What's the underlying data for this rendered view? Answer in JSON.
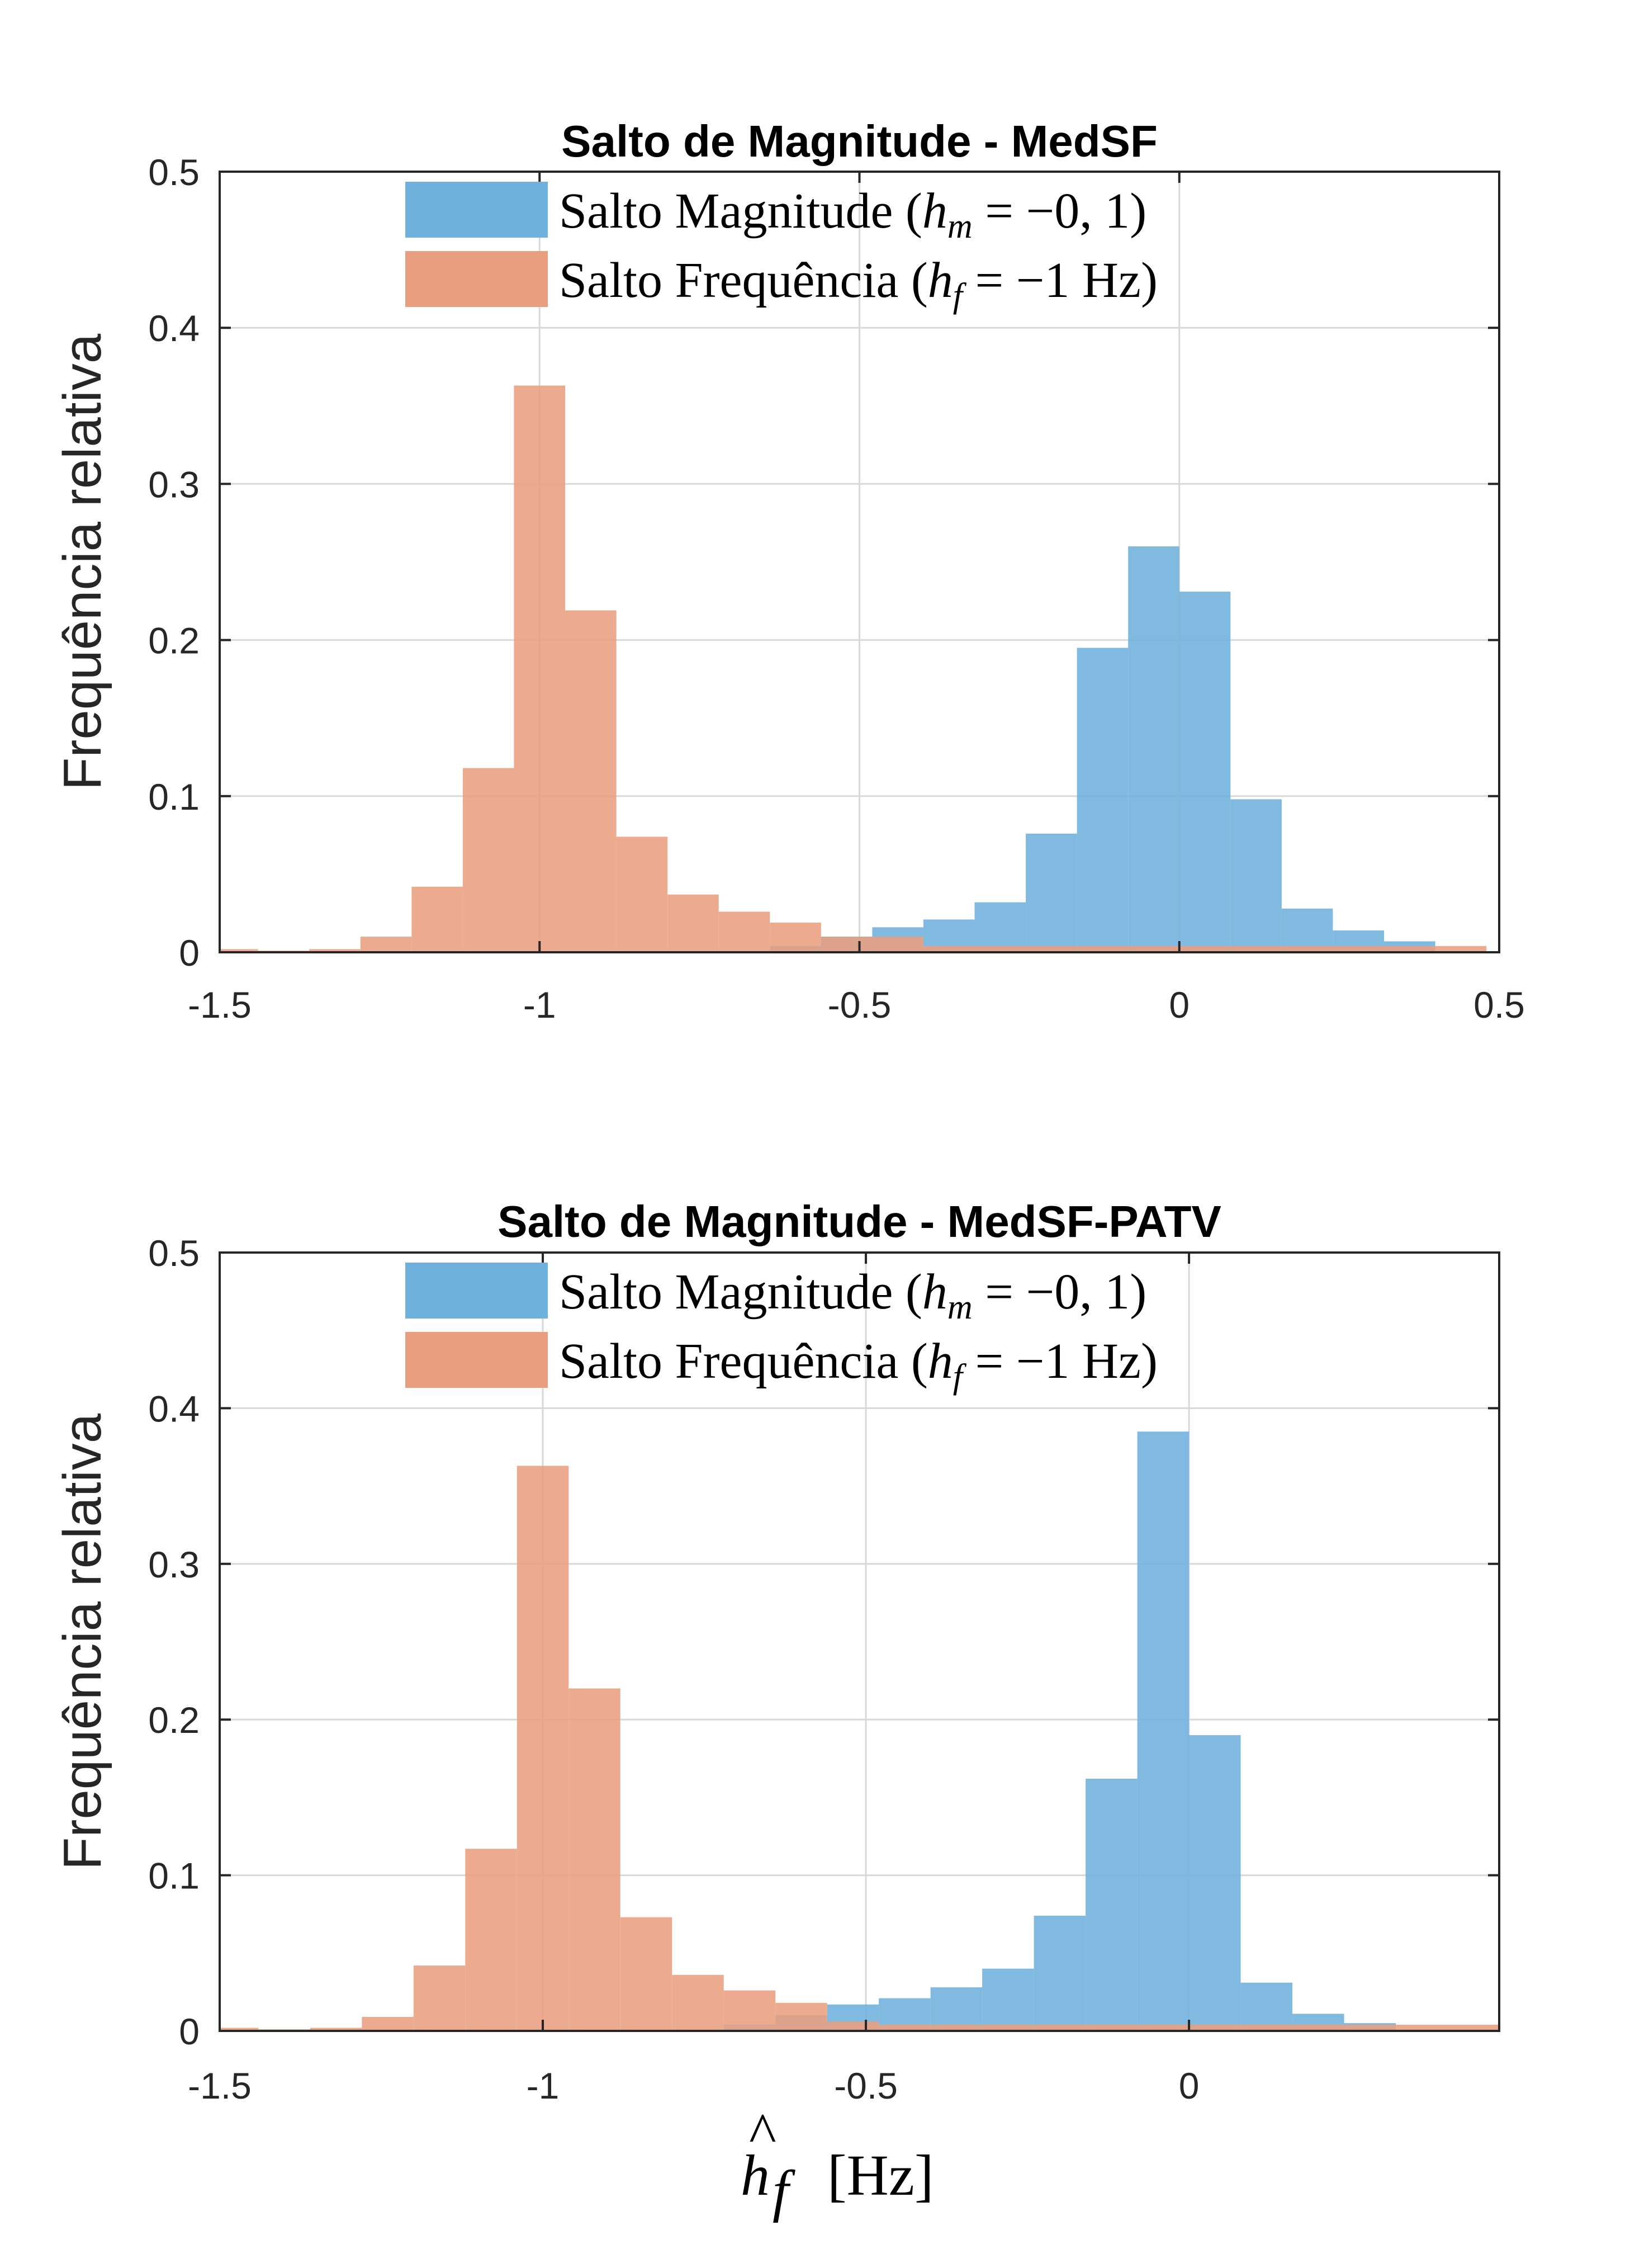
{
  "chart_data": [
    {
      "type": "bar",
      "title": "Salto de Magnitude - MedSF",
      "ylabel": "Frequência relativa",
      "xlabel": "",
      "xlim": [
        -1.5,
        0.5
      ],
      "ylim": [
        0,
        0.5
      ],
      "xticks": [
        "-1.5",
        "-1",
        "-0.5",
        "0",
        "0.5"
      ],
      "yticks": [
        "0",
        "0.1",
        "0.2",
        "0.3",
        "0.4",
        "0.5"
      ],
      "grid": true,
      "legend_position": "top",
      "series": [
        {
          "name": "Salto Magnitude ($h_m = -0,1$)",
          "name_parts": [
            "Salto Magnitude (",
            "h",
            "m",
            " = −0, 1)"
          ],
          "color": "#6FB0DD",
          "bin_edges": [
            -0.64,
            -0.56,
            -0.48,
            -0.4,
            -0.32,
            -0.24,
            -0.16,
            -0.08,
            0.0,
            0.08,
            0.16,
            0.24,
            0.32,
            0.4
          ],
          "values": [
            0.004,
            0.01,
            0.016,
            0.021,
            0.032,
            0.076,
            0.195,
            0.26,
            0.231,
            0.098,
            0.028,
            0.014,
            0.007
          ]
        },
        {
          "name": "Salto Frequência ($h_f = -1$ Hz)",
          "name_parts": [
            "Salto Frequência (",
            "h",
            "f",
            " = −1 Hz)"
          ],
          "color": "#E99E7F",
          "bin_edges": [
            -1.52,
            -1.44,
            -1.36,
            -1.28,
            -1.2,
            -1.12,
            -1.04,
            -0.96,
            -0.88,
            -0.8,
            -0.72,
            -0.64,
            -0.56,
            -0.48,
            -0.4,
            -0.32,
            -0.24,
            -0.16,
            -0.08,
            0.0,
            0.08,
            0.16,
            0.24,
            0.32,
            0.4,
            0.48
          ],
          "values": [
            0.002,
            0.001,
            0.002,
            0.01,
            0.042,
            0.118,
            0.363,
            0.219,
            0.074,
            0.037,
            0.026,
            0.019,
            0.01,
            0.01,
            0.004,
            0.004,
            0.004,
            0.004,
            0.004,
            0.004,
            0.004,
            0.004,
            0.004,
            0.004,
            0.004
          ]
        }
      ]
    },
    {
      "type": "bar",
      "title": "Salto de Magnitude - MedSF-PATV",
      "ylabel": "Frequência relativa",
      "xlabel": "$\\hat{h}_f$ [Hz]",
      "xlabel_parts": [
        "h",
        "f",
        "[Hz]"
      ],
      "xlim": [
        -1.5,
        0.48
      ],
      "ylim": [
        0,
        0.5
      ],
      "xticks": [
        "-1.5",
        "-1",
        "-0.5",
        "0"
      ],
      "yticks": [
        "0",
        "0.1",
        "0.2",
        "0.3",
        "0.4",
        "0.5"
      ],
      "grid": true,
      "legend_position": "top",
      "series": [
        {
          "name": "Salto Magnitude ($h_m = -0,1$)",
          "name_parts": [
            "Salto Magnitude (",
            "h",
            "m",
            " = −0, 1)"
          ],
          "color": "#6FB0DD",
          "bin_edges": [
            -0.72,
            -0.64,
            -0.56,
            -0.48,
            -0.4,
            -0.32,
            -0.24,
            -0.16,
            -0.08,
            0.0,
            0.08,
            0.16,
            0.24,
            0.32
          ],
          "values": [
            0.004,
            0.01,
            0.017,
            0.021,
            0.028,
            0.04,
            0.074,
            0.162,
            0.385,
            0.19,
            0.031,
            0.011,
            0.005
          ]
        },
        {
          "name": "Salto Frequência ($h_f = -1$ Hz)",
          "name_parts": [
            "Salto Frequência (",
            "h",
            "f",
            " = −1 Hz)"
          ],
          "color": "#E99E7F",
          "bin_edges": [
            -1.52,
            -1.44,
            -1.36,
            -1.28,
            -1.2,
            -1.12,
            -1.04,
            -0.96,
            -0.88,
            -0.8,
            -0.72,
            -0.64,
            -0.56,
            -0.48,
            -0.4,
            -0.32,
            -0.24,
            -0.16,
            -0.08,
            0.0,
            0.08,
            0.16,
            0.24,
            0.32,
            0.4,
            0.48
          ],
          "values": [
            0.002,
            0.001,
            0.002,
            0.009,
            0.042,
            0.117,
            0.363,
            0.22,
            0.073,
            0.036,
            0.026,
            0.018,
            0.006,
            0.004,
            0.004,
            0.004,
            0.004,
            0.004,
            0.004,
            0.004,
            0.004,
            0.004,
            0.004,
            0.004,
            0.004
          ]
        }
      ]
    }
  ]
}
